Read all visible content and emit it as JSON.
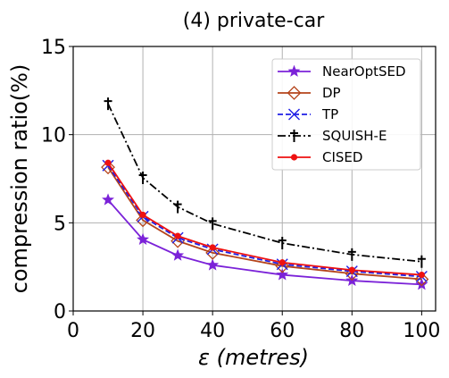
{
  "chart_data": {
    "type": "line",
    "title": "(4) private-car",
    "xlabel_symbol": "ε",
    "xlabel_unit": "(metres)",
    "ylabel": "compression ratio(%)",
    "xlim": [
      0,
      104
    ],
    "ylim": [
      0,
      15
    ],
    "xticks": [
      0,
      20,
      40,
      60,
      80,
      100
    ],
    "yticks": [
      0,
      5,
      10,
      15
    ],
    "grid": true,
    "legend_position": "top-right",
    "x": [
      10,
      20,
      30,
      40,
      60,
      80,
      100
    ],
    "series": [
      {
        "name": "NearOptSED",
        "color": "#7b22d8",
        "dash": "solid",
        "marker": "star",
        "values": [
          6.3,
          4.05,
          3.15,
          2.6,
          2.05,
          1.72,
          1.5
        ]
      },
      {
        "name": "DP",
        "color": "#b5441b",
        "dash": "solid",
        "marker": "diamond",
        "values": [
          8.15,
          5.15,
          3.97,
          3.3,
          2.55,
          2.12,
          1.8
        ]
      },
      {
        "name": "TP",
        "color": "#1f1fe6",
        "dash": "dashed",
        "marker": "x",
        "values": [
          8.25,
          5.35,
          4.15,
          3.5,
          2.65,
          2.25,
          1.95
        ]
      },
      {
        "name": "SQUISH-E",
        "color": "#000000",
        "dash": "dashdot",
        "marker": "dagger",
        "values": [
          11.75,
          7.55,
          5.9,
          4.95,
          3.85,
          3.2,
          2.8
        ]
      },
      {
        "name": "CISED",
        "color": "#ee1111",
        "dash": "solid",
        "marker": "dot",
        "values": [
          8.4,
          5.45,
          4.25,
          3.6,
          2.75,
          2.32,
          2.05
        ]
      }
    ]
  }
}
